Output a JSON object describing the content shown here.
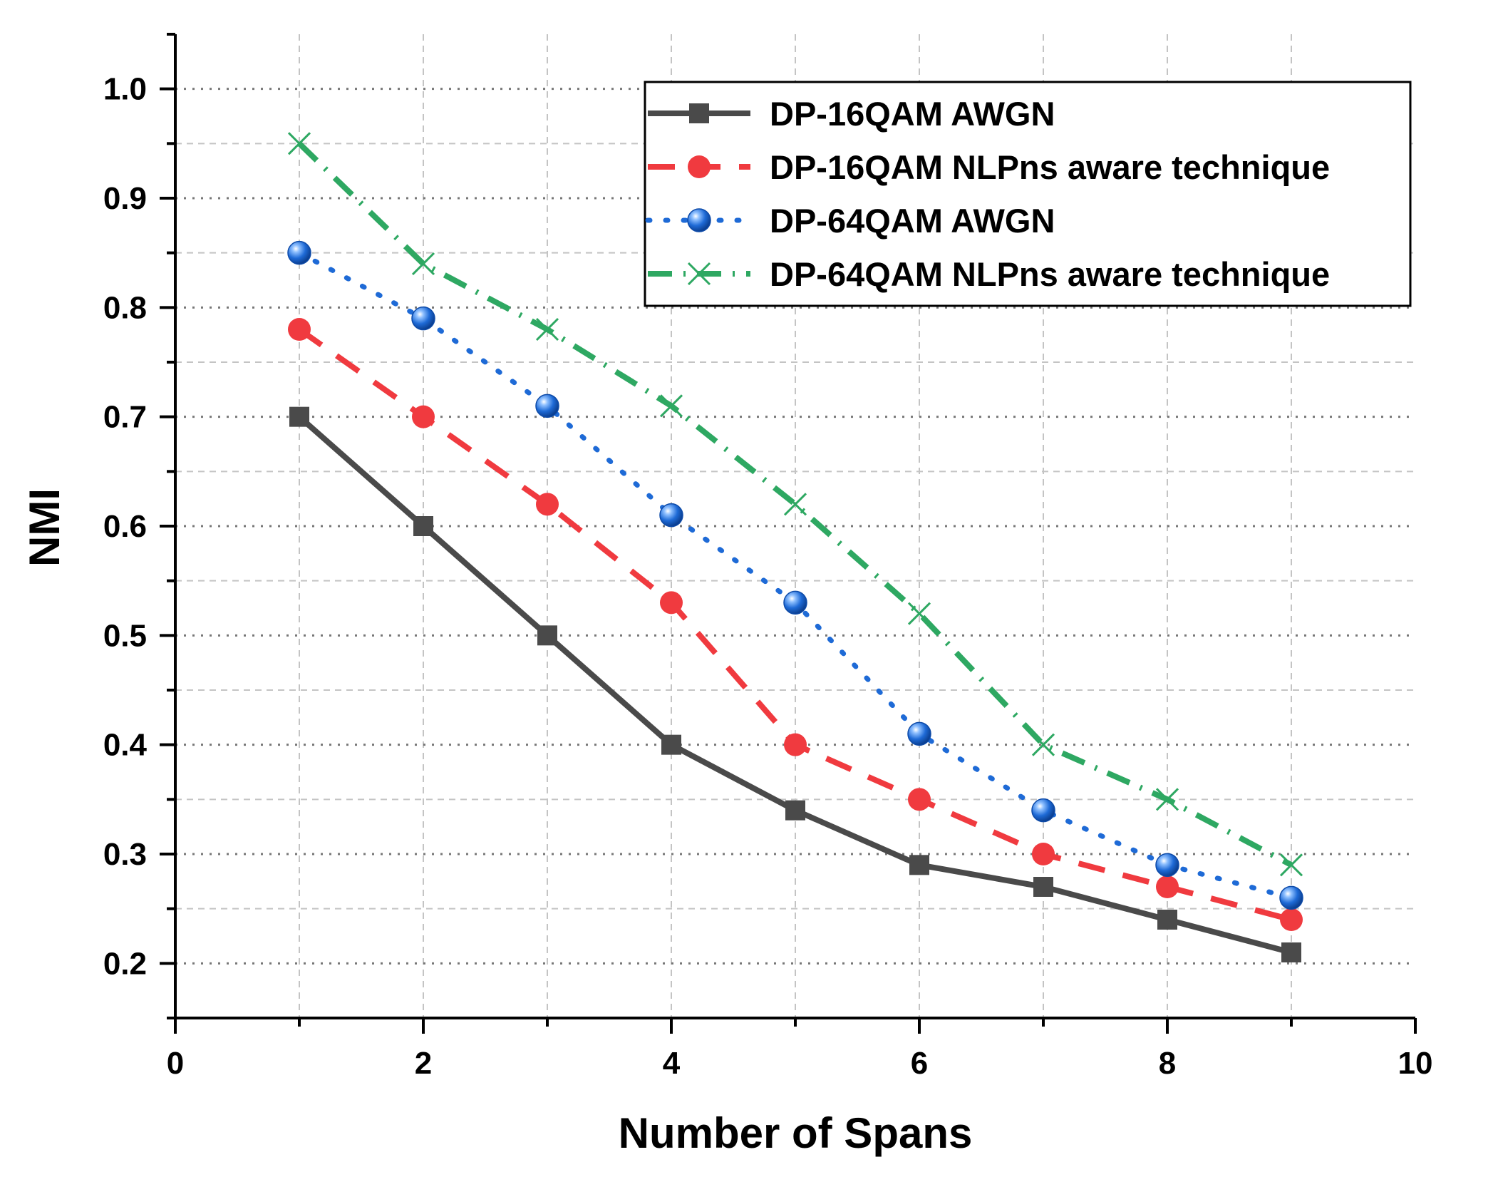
{
  "chart_data": {
    "type": "line",
    "title": "",
    "xlabel": "Number of Spans",
    "ylabel": "NMI",
    "xlim": [
      0,
      10
    ],
    "ylim": [
      0.15,
      1.05
    ],
    "xticks": [
      0,
      2,
      4,
      6,
      8,
      10
    ],
    "yticks": [
      0.2,
      0.3,
      0.4,
      0.5,
      0.6,
      0.7,
      0.8,
      0.9,
      1.0
    ],
    "xtick_labels": [
      "0",
      "2",
      "4",
      "6",
      "8",
      "10"
    ],
    "ytick_labels": [
      "0.2",
      "0.3",
      "0.4",
      "0.5",
      "0.6",
      "0.7",
      "0.8",
      "0.9",
      "1.0"
    ],
    "grid": true,
    "legend_position": "top-right",
    "x": [
      1,
      2,
      3,
      4,
      5,
      6,
      7,
      8,
      9
    ],
    "series": [
      {
        "name": "DP-16QAM AWGN",
        "values": [
          0.7,
          0.6,
          0.5,
          0.4,
          0.34,
          0.29,
          0.27,
          0.24,
          0.21
        ],
        "color": "#4a4a4a",
        "line": "solid",
        "marker": "square"
      },
      {
        "name": "DP-16QAM NLPns aware technique",
        "values": [
          0.78,
          0.7,
          0.62,
          0.53,
          0.4,
          0.35,
          0.3,
          0.27,
          0.24
        ],
        "color": "#f03a3f",
        "line": "dash",
        "marker": "circle"
      },
      {
        "name": "DP-64QAM AWGN",
        "values": [
          0.85,
          0.79,
          0.71,
          0.61,
          0.53,
          0.41,
          0.34,
          0.29,
          0.26
        ],
        "color": "#1e6ad6",
        "line": "dot",
        "marker": "sphere"
      },
      {
        "name": "DP-64QAM NLPns aware technique",
        "values": [
          0.95,
          0.84,
          0.78,
          0.71,
          0.62,
          0.52,
          0.4,
          0.35,
          0.29
        ],
        "color": "#2ea862",
        "line": "dashdot",
        "marker": "x"
      }
    ]
  }
}
